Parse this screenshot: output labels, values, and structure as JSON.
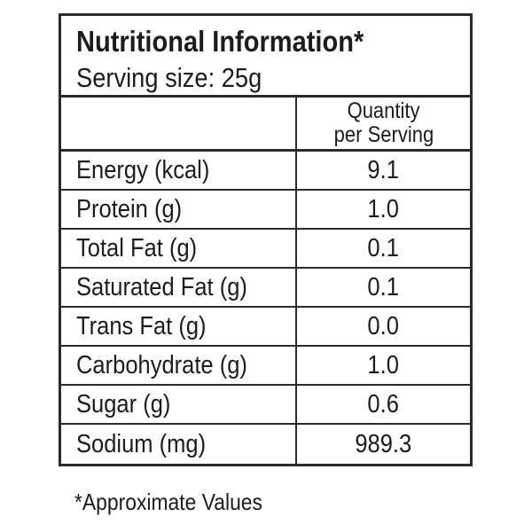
{
  "label": {
    "title": "Nutritional Information*",
    "serving_size": "Serving size: 25g",
    "value_column_header": {
      "line1": "Quantity",
      "line2": "per Serving"
    },
    "rows": [
      {
        "nutrient": "Energy (kcal)",
        "quantity": "9.1"
      },
      {
        "nutrient": "Protein (g)",
        "quantity": "1.0"
      },
      {
        "nutrient": "Total Fat (g)",
        "quantity": "0.1"
      },
      {
        "nutrient": "Saturated Fat (g)",
        "quantity": "0.1"
      },
      {
        "nutrient": "Trans Fat (g)",
        "quantity": "0.0"
      },
      {
        "nutrient": "Carbohydrate (g)",
        "quantity": "1.0"
      },
      {
        "nutrient": "Sugar (g)",
        "quantity": "0.6"
      },
      {
        "nutrient": "Sodium (mg)",
        "quantity": "989.3"
      }
    ],
    "footnote": "*Approximate Values",
    "colors": {
      "background": "#ffffff",
      "text": "#1c1c1c",
      "border": "#2b2b2b"
    }
  }
}
